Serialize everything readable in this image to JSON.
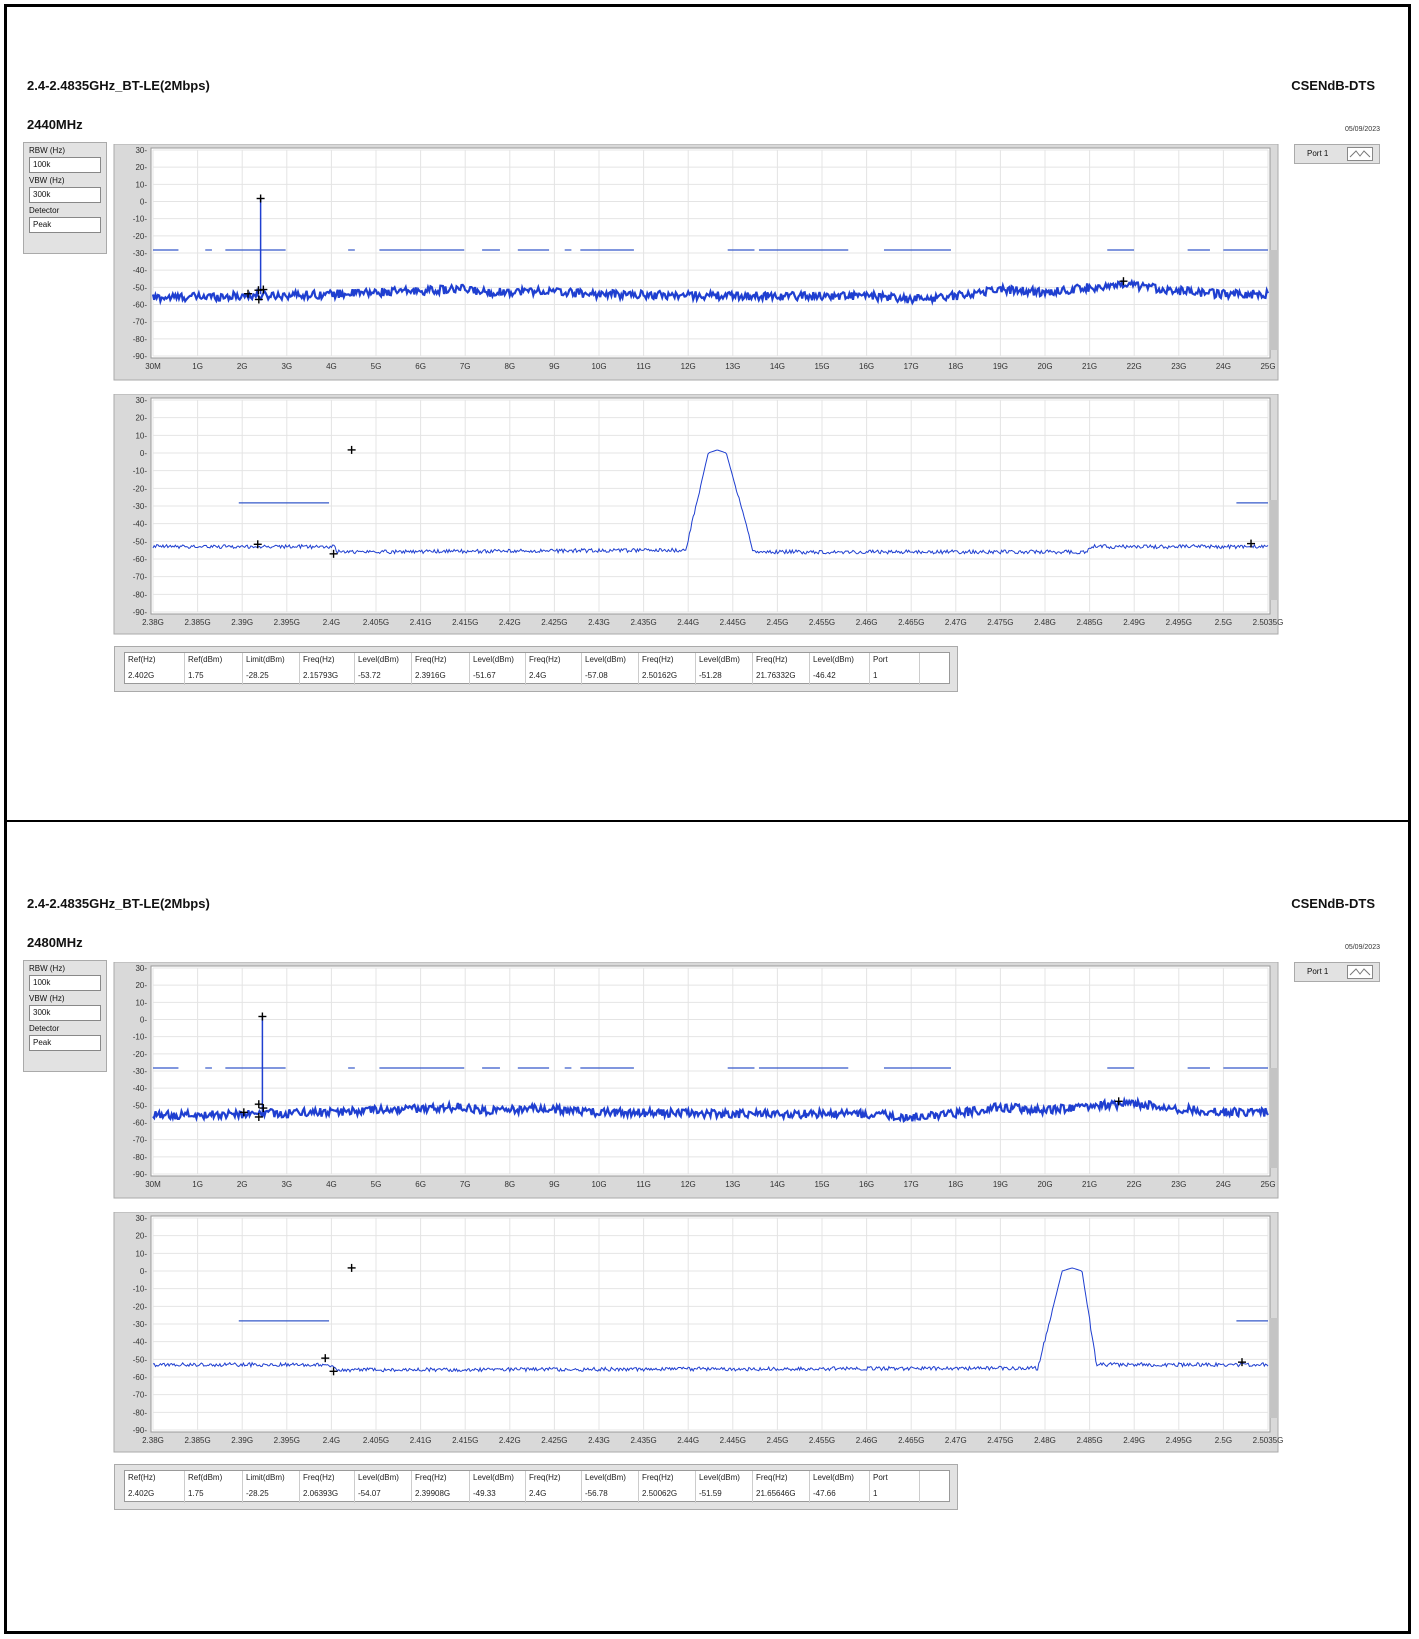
{
  "sections": [
    {
      "title": "2.4-2.4835GHz_BT-LE(2Mbps)",
      "brand": "CSENdB-DTS",
      "channel": "2440MHz",
      "date": "05/09/2023",
      "settings": {
        "rbw_label": "RBW (Hz)",
        "rbw": "100k",
        "vbw_label": "VBW (Hz)",
        "vbw": "300k",
        "det_label": "Detector",
        "det": "Peak"
      },
      "port_label": "Port 1",
      "table": {
        "headers": [
          "Ref(Hz)",
          "Ref(dBm)",
          "Limit(dBm)",
          "Freq(Hz)",
          "Level(dBm)",
          "Freq(Hz)",
          "Level(dBm)",
          "Freq(Hz)",
          "Level(dBm)",
          "Freq(Hz)",
          "Level(dBm)",
          "Freq(Hz)",
          "Level(dBm)",
          "Port"
        ],
        "values": [
          "2.402G",
          "1.75",
          "-28.25",
          "2.15793G",
          "-53.72",
          "2.3916G",
          "-51.67",
          "2.4G",
          "-57.08",
          "2.50162G",
          "-51.28",
          "21.76332G",
          "-46.42",
          "1"
        ]
      }
    },
    {
      "title": "2.4-2.4835GHz_BT-LE(2Mbps)",
      "brand": "CSENdB-DTS",
      "channel": "2480MHz",
      "date": "05/09/2023",
      "settings": {
        "rbw_label": "RBW (Hz)",
        "rbw": "100k",
        "vbw_label": "VBW (Hz)",
        "vbw": "300k",
        "det_label": "Detector",
        "det": "Peak"
      },
      "port_label": "Port 1",
      "table": {
        "headers": [
          "Ref(Hz)",
          "Ref(dBm)",
          "Limit(dBm)",
          "Freq(Hz)",
          "Level(dBm)",
          "Freq(Hz)",
          "Level(dBm)",
          "Freq(Hz)",
          "Level(dBm)",
          "Freq(Hz)",
          "Level(dBm)",
          "Freq(Hz)",
          "Level(dBm)",
          "Port"
        ],
        "values": [
          "2.402G",
          "1.75",
          "-28.25",
          "2.06393G",
          "-54.07",
          "2.39908G",
          "-49.33",
          "2.4G",
          "-56.78",
          "2.50062G",
          "-51.59",
          "21.65646G",
          "-47.66",
          "1"
        ]
      }
    }
  ],
  "chart_data": [
    {
      "type": "line",
      "id": "s0-wide",
      "ylim": [
        -90,
        30
      ],
      "xlim": [
        0.03,
        25
      ],
      "yticks": [
        "30",
        "20",
        "10",
        "0",
        "-10",
        "-20",
        "-30",
        "-40",
        "-50",
        "-60",
        "-70",
        "-80",
        "-90"
      ],
      "xticks": [
        "30M",
        "1G",
        "2G",
        "3G",
        "4G",
        "5G",
        "6G",
        "7G",
        "8G",
        "9G",
        "10G",
        "11G",
        "12G",
        "13G",
        "14G",
        "15G",
        "16G",
        "17G",
        "18G",
        "19G",
        "20G",
        "21G",
        "22G",
        "23G",
        "24G",
        "25G"
      ],
      "limit": -28.25,
      "limit_segments": [
        [
          0.03,
          0.6
        ],
        [
          1.2,
          1.35
        ],
        [
          1.65,
          3.0
        ],
        [
          4.4,
          4.55
        ],
        [
          5.1,
          7.0
        ],
        [
          7.4,
          7.8
        ],
        [
          8.2,
          8.9
        ],
        [
          9.25,
          9.4
        ],
        [
          9.6,
          10.8
        ],
        [
          12.9,
          13.5
        ],
        [
          13.6,
          15.6
        ],
        [
          16.4,
          17.9
        ],
        [
          21.4,
          22.0
        ],
        [
          23.2,
          23.7
        ],
        [
          24.0,
          25
        ]
      ],
      "noise": [
        [
          0.03,
          -56
        ],
        [
          2.0,
          -55
        ],
        [
          4.0,
          -54
        ],
        [
          6.0,
          -52
        ],
        [
          7.0,
          -51
        ],
        [
          7.5,
          -53
        ],
        [
          8.6,
          -52
        ],
        [
          10.0,
          -54
        ],
        [
          13.0,
          -55
        ],
        [
          16.0,
          -55
        ],
        [
          17.0,
          -57
        ],
        [
          18.0,
          -55
        ],
        [
          19.0,
          -51
        ],
        [
          20.0,
          -53
        ],
        [
          21.0,
          -50
        ],
        [
          22.0,
          -49
        ],
        [
          23.0,
          -52
        ],
        [
          24.0,
          -54
        ],
        [
          25.0,
          -54
        ]
      ],
      "peak": {
        "x": 2.44,
        "y": 1.75
      },
      "markers": [
        [
          2.44,
          1.75
        ],
        [
          2.15793,
          -53.72
        ],
        [
          2.3916,
          -51.67
        ],
        [
          2.4,
          -57.08
        ],
        [
          2.50162,
          -51.28
        ],
        [
          21.76332,
          -46.42
        ]
      ]
    },
    {
      "type": "line",
      "id": "s0-zoom",
      "ylim": [
        -90,
        30
      ],
      "xlim": [
        2.38,
        2.5035
      ],
      "yticks": [
        "30",
        "20",
        "10",
        "0",
        "-10",
        "-20",
        "-30",
        "-40",
        "-50",
        "-60",
        "-70",
        "-80",
        "-90"
      ],
      "xticks": [
        "2.38G",
        "2.385G",
        "2.39G",
        "2.395G",
        "2.4G",
        "2.405G",
        "2.41G",
        "2.415G",
        "2.42G",
        "2.425G",
        "2.43G",
        "2.435G",
        "2.44G",
        "2.445G",
        "2.45G",
        "2.455G",
        "2.46G",
        "2.465G",
        "2.47G",
        "2.475G",
        "2.48G",
        "2.485G",
        "2.49G",
        "2.495G",
        "2.5G",
        "2.5035G"
      ],
      "limit": -28.25,
      "limit_segments": [
        [
          2.3895,
          2.3995
        ],
        [
          2.5,
          2.5035
        ]
      ],
      "noise": [
        [
          2.38,
          -53
        ],
        [
          2.4,
          -53
        ],
        [
          2.4005,
          -56
        ],
        [
          2.439,
          -55
        ],
        [
          2.4415,
          0
        ],
        [
          2.4425,
          1.75
        ],
        [
          2.4435,
          0
        ],
        [
          2.4465,
          -56
        ],
        [
          2.4835,
          -56
        ],
        [
          2.4838,
          -53
        ],
        [
          2.5035,
          -53
        ]
      ],
      "peak": {
        "x": 2.4425,
        "y": 1.75
      },
      "markers": [
        [
          2.402,
          1.75
        ],
        [
          2.3916,
          -51.67
        ],
        [
          2.4,
          -57.08
        ],
        [
          2.50162,
          -51.28
        ]
      ]
    },
    {
      "type": "line",
      "id": "s1-wide",
      "ylim": [
        -90,
        30
      ],
      "xlim": [
        0.03,
        25
      ],
      "yticks": [
        "30",
        "20",
        "10",
        "0",
        "-10",
        "-20",
        "-30",
        "-40",
        "-50",
        "-60",
        "-70",
        "-80",
        "-90"
      ],
      "xticks": [
        "30M",
        "1G",
        "2G",
        "3G",
        "4G",
        "5G",
        "6G",
        "7G",
        "8G",
        "9G",
        "10G",
        "11G",
        "12G",
        "13G",
        "14G",
        "15G",
        "16G",
        "17G",
        "18G",
        "19G",
        "20G",
        "21G",
        "22G",
        "23G",
        "24G",
        "25G"
      ],
      "limit": -28.25,
      "limit_segments": [
        [
          0.03,
          0.6
        ],
        [
          1.2,
          1.35
        ],
        [
          1.65,
          3.0
        ],
        [
          4.4,
          4.55
        ],
        [
          5.1,
          7.0
        ],
        [
          7.4,
          7.8
        ],
        [
          8.2,
          8.9
        ],
        [
          9.25,
          9.4
        ],
        [
          9.6,
          10.8
        ],
        [
          12.9,
          13.5
        ],
        [
          13.6,
          15.6
        ],
        [
          16.4,
          17.9
        ],
        [
          21.4,
          22.0
        ],
        [
          23.2,
          23.7
        ],
        [
          24.0,
          25
        ]
      ],
      "noise": [
        [
          0.03,
          -56
        ],
        [
          2.0,
          -55
        ],
        [
          4.0,
          -54
        ],
        [
          6.0,
          -52
        ],
        [
          7.0,
          -51
        ],
        [
          7.5,
          -53
        ],
        [
          8.6,
          -52
        ],
        [
          10.0,
          -54
        ],
        [
          13.0,
          -55
        ],
        [
          16.0,
          -55
        ],
        [
          17.0,
          -57
        ],
        [
          18.0,
          -55
        ],
        [
          19.0,
          -51
        ],
        [
          20.0,
          -53
        ],
        [
          21.0,
          -50
        ],
        [
          22.0,
          -49
        ],
        [
          23.0,
          -52
        ],
        [
          24.0,
          -54
        ],
        [
          25.0,
          -54
        ]
      ],
      "peak": {
        "x": 2.48,
        "y": 1.75
      },
      "markers": [
        [
          2.48,
          1.75
        ],
        [
          2.06393,
          -54.07
        ],
        [
          2.39908,
          -49.33
        ],
        [
          2.4,
          -56.78
        ],
        [
          2.50062,
          -51.59
        ],
        [
          21.65646,
          -47.66
        ]
      ]
    },
    {
      "type": "line",
      "id": "s1-zoom",
      "ylim": [
        -90,
        30
      ],
      "xlim": [
        2.38,
        2.5035
      ],
      "yticks": [
        "30",
        "20",
        "10",
        "0",
        "-10",
        "-20",
        "-30",
        "-40",
        "-50",
        "-60",
        "-70",
        "-80",
        "-90"
      ],
      "xticks": [
        "2.38G",
        "2.385G",
        "2.39G",
        "2.395G",
        "2.4G",
        "2.405G",
        "2.41G",
        "2.415G",
        "2.42G",
        "2.425G",
        "2.43G",
        "2.435G",
        "2.44G",
        "2.445G",
        "2.45G",
        "2.455G",
        "2.46G",
        "2.465G",
        "2.47G",
        "2.475G",
        "2.48G",
        "2.485G",
        "2.49G",
        "2.495G",
        "2.5G",
        "2.5035G"
      ],
      "limit": -28.25,
      "limit_segments": [
        [
          2.3895,
          2.3995
        ],
        [
          2.5,
          2.5035
        ]
      ],
      "noise": [
        [
          2.38,
          -53
        ],
        [
          2.3995,
          -53
        ],
        [
          2.4005,
          -56
        ],
        [
          2.478,
          -55
        ],
        [
          2.4807,
          0
        ],
        [
          2.4818,
          1.75
        ],
        [
          2.4829,
          0
        ],
        [
          2.4845,
          -53
        ],
        [
          2.5035,
          -53
        ]
      ],
      "peak": {
        "x": 2.4818,
        "y": 1.75
      },
      "markers": [
        [
          2.402,
          1.75
        ],
        [
          2.39908,
          -49.33
        ],
        [
          2.4,
          -56.78
        ],
        [
          2.50062,
          -51.59
        ]
      ]
    }
  ]
}
